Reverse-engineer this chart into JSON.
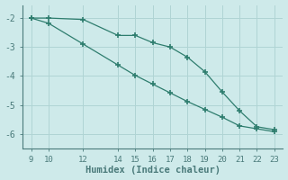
{
  "line1_x": [
    9,
    10,
    12,
    14,
    15,
    16,
    17,
    18,
    19,
    20,
    21,
    22,
    23
  ],
  "line1_y": [
    -2.0,
    -2.0,
    -2.05,
    -2.6,
    -2.6,
    -2.85,
    -3.0,
    -3.35,
    -3.85,
    -4.55,
    -5.2,
    -5.75,
    -5.85
  ],
  "line2_x": [
    9,
    10,
    12,
    14,
    15,
    16,
    17,
    18,
    19,
    20,
    21,
    22,
    23
  ],
  "line2_y": [
    -2.0,
    -2.18,
    -2.9,
    -3.62,
    -3.98,
    -4.28,
    -4.58,
    -4.88,
    -5.15,
    -5.42,
    -5.72,
    -5.82,
    -5.92
  ],
  "line_color": "#2e7d6e",
  "bg_color": "#ceeaea",
  "grid_color": "#b0d4d4",
  "axis_color": "#4a7a7a",
  "xlabel": "Humidex (Indice chaleur)",
  "xticks": [
    9,
    10,
    12,
    14,
    15,
    16,
    17,
    18,
    19,
    20,
    21,
    22,
    23
  ],
  "yticks": [
    -6,
    -5,
    -4,
    -3,
    -2
  ],
  "xlim": [
    8.5,
    23.5
  ],
  "ylim": [
    -6.5,
    -1.55
  ]
}
